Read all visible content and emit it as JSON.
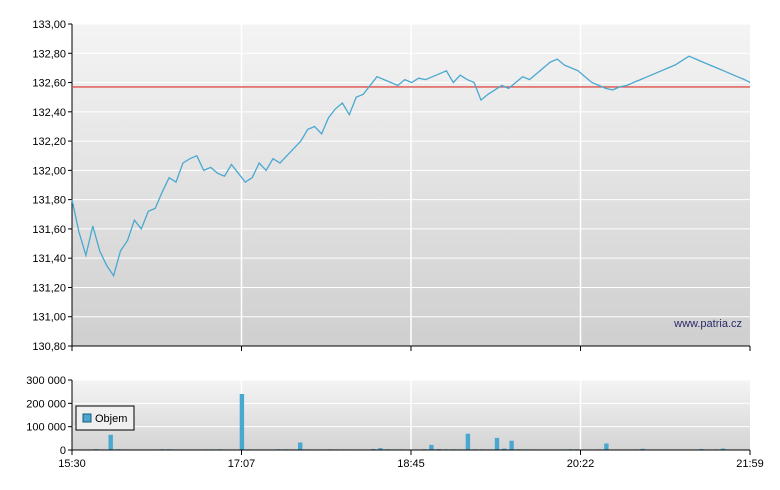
{
  "watermark": "www.patria.cz",
  "colors": {
    "line": "#4aa8d0",
    "reference": "#e0504a",
    "volume": "#4aa8d0",
    "grid": "#ffffff",
    "frame": "#000000"
  },
  "chart_data": [
    {
      "type": "line",
      "title": "",
      "xlabel": "",
      "ylabel": "",
      "ylim": [
        130.8,
        133.0
      ],
      "y_ticks": [
        "133,00",
        "132,80",
        "132,60",
        "132,40",
        "132,20",
        "132,00",
        "131,80",
        "131,60",
        "131,40",
        "131,20",
        "131,00",
        "130,80"
      ],
      "x_ticks": [
        "15:30",
        "17:07",
        "18:45",
        "20:22",
        "21:59"
      ],
      "reference_line": 132.57,
      "grid": true,
      "series": [
        {
          "x": [
            0,
            5,
            10,
            15,
            20,
            25,
            30,
            35,
            40,
            45,
            50,
            55,
            60,
            65,
            70,
            75,
            80,
            85,
            90,
            95,
            100,
            105,
            110,
            115,
            120,
            125,
            130,
            135,
            140,
            145,
            150,
            155,
            160,
            165,
            170,
            175,
            180,
            185,
            190,
            195,
            200,
            205,
            210,
            215,
            220,
            225,
            230,
            235,
            240,
            245,
            250,
            255,
            260,
            265,
            270,
            275,
            280,
            285,
            290,
            295,
            300,
            305,
            310,
            315,
            320,
            325,
            330,
            335,
            340,
            345,
            350,
            355,
            360,
            365,
            370,
            375,
            380,
            385,
            390,
            395,
            400,
            405,
            410,
            415,
            420,
            425,
            430,
            435,
            440,
            445,
            450,
            455,
            460,
            465,
            470,
            475,
            480,
            485,
            489
          ],
          "values": [
            131.8,
            131.58,
            131.42,
            131.62,
            131.45,
            131.35,
            131.28,
            131.45,
            131.52,
            131.66,
            131.6,
            131.72,
            131.74,
            131.85,
            131.95,
            131.92,
            132.05,
            132.08,
            132.1,
            132.0,
            132.02,
            131.98,
            131.96,
            132.04,
            131.98,
            131.92,
            131.95,
            132.05,
            132.0,
            132.08,
            132.05,
            132.1,
            132.15,
            132.2,
            132.28,
            132.3,
            132.25,
            132.36,
            132.42,
            132.46,
            132.38,
            132.5,
            132.52,
            132.58,
            132.64,
            132.62,
            132.6,
            132.58,
            132.62,
            132.6,
            132.63,
            132.62,
            132.64,
            132.66,
            132.68,
            132.6,
            132.65,
            132.62,
            132.6,
            132.48,
            132.52,
            132.55,
            132.58,
            132.56,
            132.6,
            132.64,
            132.62,
            132.66,
            132.7,
            132.74,
            132.76,
            132.72,
            132.7,
            132.68,
            132.64,
            132.6,
            132.58,
            132.56,
            132.55,
            132.57,
            132.58,
            132.6,
            132.62,
            132.64,
            132.66,
            132.68,
            132.7,
            132.72,
            132.75,
            132.78,
            132.76,
            132.74,
            132.72,
            132.7,
            132.68,
            132.66,
            132.64,
            132.62,
            132.6
          ]
        }
      ]
    },
    {
      "type": "bar",
      "title": "",
      "ylim": [
        0,
        300000
      ],
      "y_ticks": [
        "300 000",
        "200 000",
        "100 000",
        "0"
      ],
      "x_ticks": [
        "15:30",
        "17:07",
        "18:45",
        "20:22",
        "21:59"
      ],
      "legend": "Objem",
      "legend_position": "left",
      "series": [
        {
          "name": "Objem",
          "values": [
            2000,
            1500,
            1800,
            3500,
            2200,
            65000,
            3000,
            2500,
            1800,
            2100,
            1600,
            1900,
            2800,
            3100,
            2300,
            2000,
            1800,
            1700,
            2400,
            2600,
            3000,
            2200,
            1800,
            240000,
            2600,
            2200,
            2100,
            1900,
            3000,
            2800,
            2600,
            32000,
            2400,
            2200,
            2100,
            3000,
            2700,
            2600,
            2300,
            2100,
            2000,
            4000,
            8000,
            3000,
            2600,
            2400,
            2200,
            2000,
            3000,
            22000,
            4000,
            3000,
            2800,
            2600,
            70000,
            3000,
            2800,
            2600,
            52000,
            6000,
            40000,
            2800,
            2600,
            2400,
            2200,
            2100,
            2000,
            2500,
            3000,
            3200,
            2200,
            1800,
            2600,
            28000,
            2200,
            2000,
            1900,
            2600,
            5000,
            1800,
            2200,
            2000,
            1800,
            1600,
            1400,
            1200,
            4000,
            2000,
            2400,
            6000,
            2000,
            2200,
            1800
          ]
        }
      ]
    }
  ]
}
